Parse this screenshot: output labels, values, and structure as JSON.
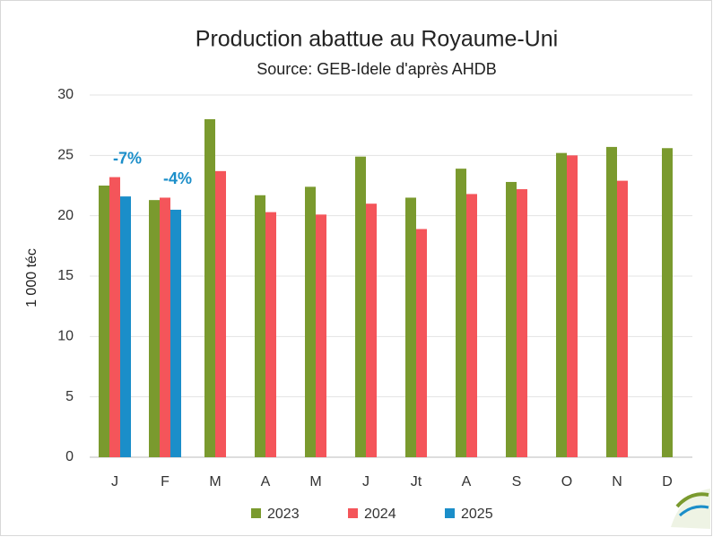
{
  "chart_data": {
    "type": "bar",
    "title": "Production abattue au Royaume-Uni",
    "subtitle": "Source: GEB-Idele d'après AHDB",
    "y_label": "1 000 téc",
    "categories": [
      "J",
      "F",
      "M",
      "A",
      "M",
      "J",
      "Jt",
      "A",
      "S",
      "O",
      "N",
      "D"
    ],
    "series": [
      {
        "name": "2023",
        "color": "#7a9a2e",
        "values": [
          22.5,
          21.3,
          28.0,
          21.7,
          22.4,
          24.9,
          21.5,
          23.9,
          22.8,
          25.2,
          25.7,
          25.6
        ]
      },
      {
        "name": "2024",
        "color": "#f4555a",
        "values": [
          23.2,
          21.5,
          23.7,
          20.3,
          20.1,
          21.0,
          18.9,
          21.8,
          22.2,
          25.0,
          22.9,
          null
        ]
      },
      {
        "name": "2025",
        "color": "#1b8ec9",
        "values": [
          21.6,
          20.5,
          null,
          null,
          null,
          null,
          null,
          null,
          null,
          null,
          null,
          null
        ]
      }
    ],
    "annotations": [
      {
        "text": "-7%",
        "category": "J"
      },
      {
        "text": "-4%",
        "category": "F"
      }
    ],
    "annotation_color": "#1b8ec9",
    "ylim": [
      0,
      30
    ],
    "yticks": [
      0,
      5,
      10,
      15,
      20,
      25,
      30
    ],
    "grid": true,
    "legend": "bottom"
  }
}
